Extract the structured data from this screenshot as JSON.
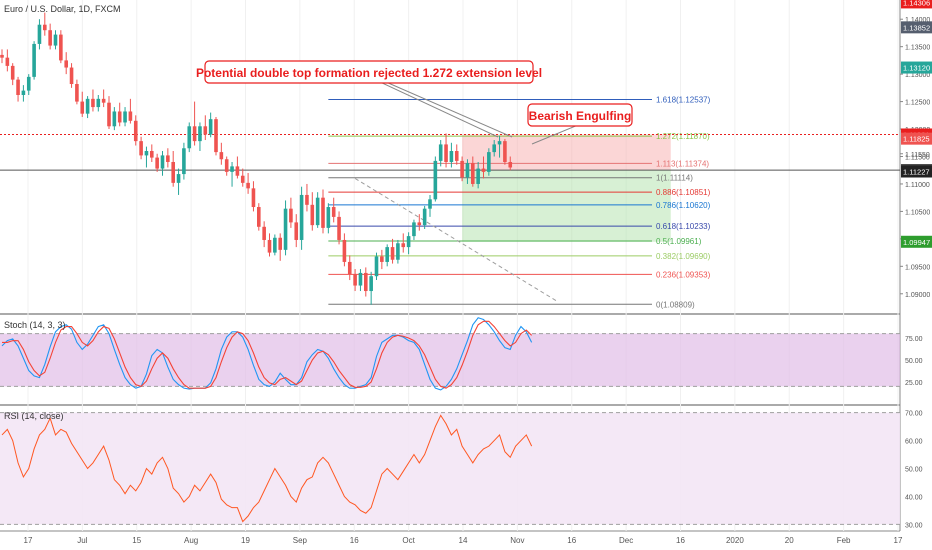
{
  "header": {
    "symbol_title": "Euro / U.S. Dollar, 1D, FXCM"
  },
  "annotations": {
    "main_callout": "Potential double top formation rejected 1.272 extension level",
    "engulf_callout": "Bearish Engulfing"
  },
  "colors": {
    "up": "#26a69a",
    "down": "#ef5350",
    "accent_red": "#e91e1e",
    "fib_blue": "#2f5dbb",
    "stoch_k": "#2196f3",
    "stoch_d": "#f44336",
    "rsi": "#ff5722",
    "stoch_band": "#e1bee7",
    "rsi_band": "#f3e5f5"
  },
  "chart_data": [
    {
      "type": "candlestick",
      "title": "Euro / U.S. Dollar, 1D, FXCM",
      "ylim": [
        1.0865,
        1.1435
      ],
      "y_ticks": [
        1.09,
        1.095,
        1.1,
        1.105,
        1.11,
        1.115,
        1.1155,
        1.12,
        1.125,
        1.13,
        1.135,
        1.14
      ],
      "x_tick_labels": [
        "17",
        "Jul",
        "15",
        "Aug",
        "19",
        "Sep",
        "16",
        "Oct",
        "14",
        "Nov",
        "16",
        "Dec",
        "16",
        "2020",
        "20",
        "Feb",
        "17"
      ],
      "ohlc": [
        [
          1.1335,
          1.1345,
          1.132,
          1.133
        ],
        [
          1.133,
          1.1345,
          1.1305,
          1.1315
        ],
        [
          1.1315,
          1.132,
          1.128,
          1.129
        ],
        [
          1.129,
          1.1295,
          1.125,
          1.1262
        ],
        [
          1.1262,
          1.128,
          1.125,
          1.127
        ],
        [
          1.127,
          1.13,
          1.1262,
          1.1295
        ],
        [
          1.1295,
          1.136,
          1.129,
          1.1355
        ],
        [
          1.1355,
          1.14,
          1.1345,
          1.139
        ],
        [
          1.139,
          1.1412,
          1.137,
          1.138
        ],
        [
          1.138,
          1.1392,
          1.1345,
          1.1352
        ],
        [
          1.1352,
          1.138,
          1.1345,
          1.1372
        ],
        [
          1.1372,
          1.138,
          1.132,
          1.1325
        ],
        [
          1.1325,
          1.134,
          1.13,
          1.1312
        ],
        [
          1.1312,
          1.132,
          1.1275,
          1.1282
        ],
        [
          1.1282,
          1.129,
          1.1245,
          1.125
        ],
        [
          1.125,
          1.1268,
          1.1222,
          1.1228
        ],
        [
          1.1228,
          1.126,
          1.122,
          1.1255
        ],
        [
          1.1255,
          1.1272,
          1.1232,
          1.124
        ],
        [
          1.124,
          1.1262,
          1.1232,
          1.1255
        ],
        [
          1.1255,
          1.1272,
          1.124,
          1.1248
        ],
        [
          1.1248,
          1.126,
          1.12,
          1.1205
        ],
        [
          1.1205,
          1.124,
          1.1198,
          1.1232
        ],
        [
          1.1232,
          1.1248,
          1.1205,
          1.1212
        ],
        [
          1.1212,
          1.124,
          1.1205,
          1.1232
        ],
        [
          1.1232,
          1.1255,
          1.121,
          1.1215
        ],
        [
          1.1215,
          1.1225,
          1.117,
          1.1178
        ],
        [
          1.1178,
          1.1186,
          1.1145,
          1.1152
        ],
        [
          1.1152,
          1.1168,
          1.113,
          1.116
        ],
        [
          1.116,
          1.1172,
          1.114,
          1.1148
        ],
        [
          1.1148,
          1.1155,
          1.1122,
          1.1128
        ],
        [
          1.1128,
          1.116,
          1.1115,
          1.1152
        ],
        [
          1.1152,
          1.1165,
          1.113,
          1.114
        ],
        [
          1.114,
          1.116,
          1.1095,
          1.1102
        ],
        [
          1.1102,
          1.1128,
          1.108,
          1.1118
        ],
        [
          1.1118,
          1.1175,
          1.1108,
          1.1165
        ],
        [
          1.1165,
          1.1212,
          1.1158,
          1.1205
        ],
        [
          1.1205,
          1.125,
          1.117,
          1.1178
        ],
        [
          1.1178,
          1.1212,
          1.116,
          1.1205
        ],
        [
          1.1205,
          1.1225,
          1.118,
          1.119
        ],
        [
          1.119,
          1.123,
          1.1185,
          1.1218
        ],
        [
          1.1218,
          1.1222,
          1.1152,
          1.1158
        ],
        [
          1.1158,
          1.1175,
          1.1135,
          1.1145
        ],
        [
          1.1145,
          1.115,
          1.1115,
          1.1122
        ],
        [
          1.1122,
          1.114,
          1.1095,
          1.1132
        ],
        [
          1.1132,
          1.115,
          1.111,
          1.1115
        ],
        [
          1.1115,
          1.1128,
          1.1095,
          1.1102
        ],
        [
          1.1102,
          1.112,
          1.1082,
          1.1092
        ],
        [
          1.1092,
          1.1105,
          1.105,
          1.1058
        ],
        [
          1.1058,
          1.1065,
          1.1015,
          1.1022
        ],
        [
          1.1022,
          1.1032,
          1.0985,
          1.0998
        ],
        [
          1.0998,
          1.101,
          1.0968,
          1.0975
        ],
        [
          1.0975,
          1.1008,
          1.097,
          1.1002
        ],
        [
          1.1002,
          1.101,
          1.096,
          1.098
        ],
        [
          1.098,
          1.107,
          1.097,
          1.1055
        ],
        [
          1.1055,
          1.1075,
          1.102,
          1.103
        ],
        [
          1.103,
          1.1045,
          1.0985,
          1.0998
        ],
        [
          1.0998,
          1.1095,
          1.098,
          1.108
        ],
        [
          1.108,
          1.11,
          1.105,
          1.1062
        ],
        [
          1.1062,
          1.1085,
          1.1015,
          1.1025
        ],
        [
          1.1025,
          1.1085,
          1.102,
          1.1075
        ],
        [
          1.1075,
          1.109,
          1.101,
          1.102
        ],
        [
          1.102,
          1.1065,
          1.101,
          1.1058
        ],
        [
          1.1058,
          1.1075,
          1.103,
          1.104
        ],
        [
          1.104,
          1.105,
          1.099,
          1.0998
        ],
        [
          1.0998,
          1.101,
          1.095,
          1.0958
        ],
        [
          1.0958,
          1.097,
          1.0925,
          1.0935
        ],
        [
          1.0935,
          1.0945,
          1.0905,
          1.0915
        ],
        [
          1.0915,
          1.0945,
          1.0905,
          1.0938
        ],
        [
          1.0938,
          1.0948,
          1.0895,
          1.0905
        ],
        [
          1.0905,
          1.094,
          1.088,
          1.0932
        ],
        [
          1.0932,
          1.0975,
          1.0925,
          1.0968
        ],
        [
          1.0968,
          1.098,
          1.0945,
          1.0958
        ],
        [
          1.0958,
          1.099,
          1.095,
          1.0985
        ],
        [
          1.0985,
          1.1,
          1.0955,
          1.0962
        ],
        [
          1.0962,
          1.0998,
          1.0955,
          1.0992
        ],
        [
          1.0992,
          1.101,
          1.0975,
          1.0985
        ],
        [
          1.0985,
          1.1012,
          1.0972,
          1.1005
        ],
        [
          1.1005,
          1.1035,
          1.0998,
          1.103
        ],
        [
          1.103,
          1.1045,
          1.1015,
          1.1025
        ],
        [
          1.1025,
          1.106,
          1.1018,
          1.1055
        ],
        [
          1.1055,
          1.108,
          1.104,
          1.1072
        ],
        [
          1.1072,
          1.115,
          1.1068,
          1.1142
        ],
        [
          1.1142,
          1.118,
          1.1132,
          1.1172
        ],
        [
          1.1172,
          1.1192,
          1.113,
          1.114
        ],
        [
          1.114,
          1.1175,
          1.113,
          1.116
        ],
        [
          1.116,
          1.1172,
          1.1135,
          1.1142
        ],
        [
          1.1142,
          1.115,
          1.1105,
          1.1112
        ],
        [
          1.1112,
          1.1145,
          1.11,
          1.1138
        ],
        [
          1.1138,
          1.115,
          1.1095,
          1.11
        ],
        [
          1.11,
          1.114,
          1.1092,
          1.1128
        ],
        [
          1.1128,
          1.115,
          1.111,
          1.1122
        ],
        [
          1.1122,
          1.1165,
          1.1115,
          1.1158
        ],
        [
          1.1158,
          1.118,
          1.115,
          1.1172
        ],
        [
          1.1172,
          1.1188,
          1.1148,
          1.1178
        ],
        [
          1.1178,
          1.1182,
          1.1135,
          1.114
        ],
        [
          1.114,
          1.115,
          1.1125,
          1.113
        ]
      ],
      "horizontal_lines": [
        {
          "price": 1.11901,
          "style": "dotted",
          "color": "#e91e1e"
        },
        {
          "price": 1.11253,
          "style": "solid",
          "color": "#555555"
        }
      ],
      "trendline": {
        "from_index": 66,
        "from_price": 1.111,
        "to_index": 104,
        "to_price": 1.0885
      },
      "fib_levels": [
        {
          "ratio": "1.618",
          "price": 1.12537,
          "label": "1.618(1.12537)",
          "color": "#2f5dbb"
        },
        {
          "ratio": "1.272",
          "price": 1.1187,
          "label": "1.272(1.11870)",
          "color": "#8bc34a"
        },
        {
          "ratio": "1.113",
          "price": 1.11374,
          "label": "1.113(1.11374)",
          "color": "#e57373"
        },
        {
          "ratio": "1",
          "price": 1.11114,
          "label": "1(1.11114)",
          "color": "#777777"
        },
        {
          "ratio": "0.886",
          "price": 1.10851,
          "label": "0.886(1.10851)",
          "color": "#e53935"
        },
        {
          "ratio": "0.786",
          "price": 1.1062,
          "label": "0.786(1.10620)",
          "color": "#1976d2"
        },
        {
          "ratio": "0.618",
          "price": 1.10233,
          "label": "0.618(1.10233)",
          "color": "#3949ab"
        },
        {
          "ratio": "0.5",
          "price": 1.09961,
          "label": "0.5(1.09961)",
          "color": "#4caf50"
        },
        {
          "ratio": "0.382",
          "price": 1.0969,
          "label": "0.382(1.09690)",
          "color": "#9ccc65"
        },
        {
          "ratio": "0.236",
          "price": 1.09353,
          "label": "0.236(1.09353)",
          "color": "#ef5350"
        },
        {
          "ratio": "0",
          "price": 1.08809,
          "label": "0(1.08809)",
          "color": "#777777"
        }
      ],
      "position_box": {
        "entry": 1.11253,
        "stop": 1.11901,
        "target": 1.09947,
        "from_index": 86,
        "to_index": 125
      },
      "price_badges": [
        {
          "price": 1.14306,
          "label": "1.14306",
          "color": "#e91e1e"
        },
        {
          "price": 1.13852,
          "label": "1.13852",
          "color": "#555e6e"
        },
        {
          "price": 1.1312,
          "label": "1.13120",
          "color": "#26a69a"
        },
        {
          "price": 1.11901,
          "label": "1.11901",
          "color": "#e91e1e"
        },
        {
          "price": 1.11825,
          "label": "1.11825",
          "color": "#ef5350"
        },
        {
          "price": 1.11253,
          "label": "1.11253",
          "color": "#444444"
        },
        {
          "price": 1.11227,
          "label": "1.11227",
          "color": "#222222"
        },
        {
          "price": 1.09947,
          "label": "1.09947",
          "color": "#2e9d2e"
        }
      ]
    },
    {
      "type": "line",
      "title": "Stoch (14, 3, 3)",
      "ylim": [
        0,
        100
      ],
      "y_ticks": [
        25,
        50,
        75
      ],
      "bands": [
        20,
        80
      ],
      "series": [
        {
          "name": "K",
          "values": [
            66,
            72,
            74,
            66,
            52,
            38,
            32,
            30,
            45,
            65,
            82,
            88,
            90,
            85,
            70,
            62,
            68,
            78,
            88,
            90,
            80,
            62,
            45,
            30,
            22,
            18,
            20,
            34,
            55,
            62,
            58,
            42,
            28,
            22,
            18,
            17,
            18,
            18,
            18,
            24,
            40,
            62,
            76,
            82,
            82,
            76,
            62,
            44,
            28,
            22,
            20,
            25,
            35,
            28,
            22,
            22,
            30,
            48,
            56,
            62,
            60,
            52,
            40,
            30,
            22,
            18,
            18,
            20,
            22,
            30,
            54,
            70,
            74,
            78,
            78,
            76,
            72,
            70,
            62,
            45,
            28,
            18,
            16,
            20,
            28,
            40,
            56,
            72,
            90,
            98,
            96,
            90,
            82,
            72,
            64,
            62,
            78,
            88,
            82,
            70
          ]
        },
        {
          "name": "D",
          "values": [
            70,
            70,
            72,
            72,
            62,
            48,
            38,
            32,
            36,
            52,
            70,
            84,
            88,
            88,
            80,
            70,
            66,
            72,
            82,
            88,
            86,
            74,
            58,
            42,
            30,
            22,
            20,
            26,
            40,
            52,
            58,
            52,
            40,
            30,
            22,
            18,
            18,
            18,
            18,
            20,
            30,
            48,
            64,
            76,
            82,
            80,
            72,
            58,
            42,
            30,
            24,
            22,
            28,
            30,
            26,
            22,
            26,
            38,
            50,
            58,
            60,
            56,
            48,
            38,
            30,
            22,
            19,
            19,
            20,
            25,
            40,
            58,
            70,
            76,
            78,
            77,
            75,
            72,
            66,
            56,
            42,
            28,
            20,
            18,
            22,
            30,
            44,
            60,
            78,
            90,
            94,
            94,
            88,
            80,
            72,
            66,
            70,
            80,
            84,
            78
          ]
        }
      ]
    },
    {
      "type": "line",
      "title": "RSI (14, close)",
      "ylim": [
        28,
        72
      ],
      "y_ticks": [
        30,
        40,
        50,
        60,
        70
      ],
      "bands": [
        30,
        70
      ],
      "series": [
        {
          "name": "RSI",
          "values": [
            62,
            64,
            60,
            52,
            47,
            50,
            57,
            62,
            64,
            68,
            62,
            64,
            63,
            59,
            56,
            53,
            50,
            52,
            55,
            58,
            53,
            46,
            44,
            41,
            44,
            42,
            45,
            50,
            48,
            52,
            54,
            50,
            43,
            41,
            38,
            40,
            44,
            42,
            45,
            48,
            45,
            39,
            37,
            36,
            36,
            31,
            33,
            36,
            38,
            42,
            46,
            50,
            47,
            44,
            40,
            38,
            43,
            46,
            47,
            52,
            54,
            52,
            48,
            44,
            40,
            38,
            37,
            35,
            34,
            36,
            42,
            48,
            50,
            48,
            46,
            49,
            52,
            55,
            52,
            55,
            60,
            65,
            69,
            66,
            62,
            64,
            58,
            55,
            52,
            55,
            57,
            58,
            60,
            62,
            56,
            54,
            58,
            60,
            62,
            58
          ]
        }
      ]
    }
  ]
}
